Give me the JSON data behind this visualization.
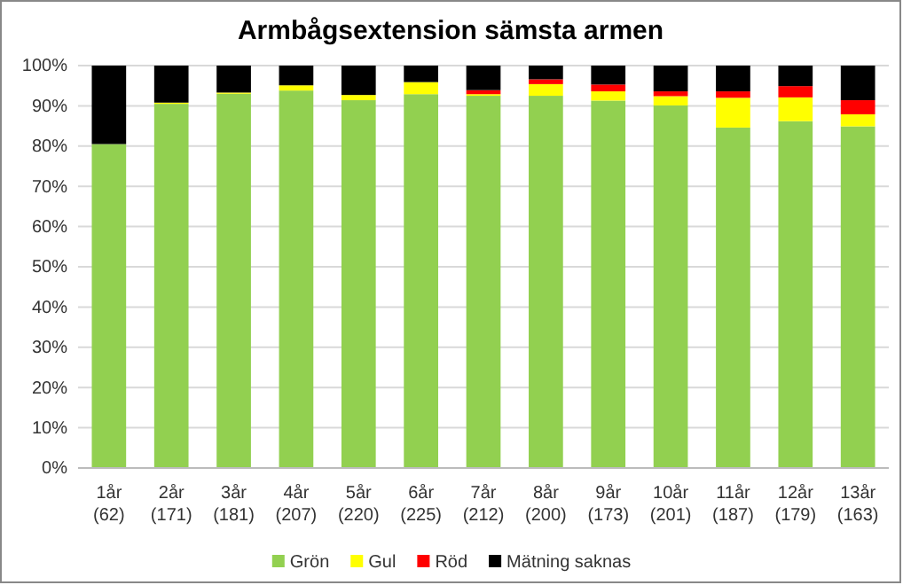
{
  "chart_data": {
    "type": "bar",
    "title": "Armbågsextension sämsta armen",
    "stacked": true,
    "categories": [
      "1år (62)",
      "2år (171)",
      "3år (181)",
      "4år (207)",
      "5år (220)",
      "6år (225)",
      "7år (212)",
      "8år (200)",
      "9år (173)",
      "10år (201)",
      "11år (187)",
      "12år (179)",
      "13år (163)"
    ],
    "series": [
      {
        "name": "Grön",
        "color": "#92d050",
        "values": [
          80.5,
          90.5,
          93,
          93.8,
          91.4,
          92.9,
          92.5,
          92.5,
          91.3,
          90.1,
          84.6,
          86.2,
          84.9
        ]
      },
      {
        "name": "Gul",
        "color": "#ffff00",
        "values": [
          0,
          0.3,
          0.3,
          1.3,
          1.3,
          3,
          0.4,
          2.9,
          2.3,
          2.3,
          7.4,
          5.9,
          3
        ]
      },
      {
        "name": "Röd",
        "color": "#ff0000",
        "values": [
          0,
          0,
          0,
          0,
          0,
          0,
          1,
          1.2,
          1.7,
          1.2,
          1.6,
          2.8,
          3.5
        ]
      },
      {
        "name": "Mätning saknas",
        "color": "#000000",
        "values": [
          19.5,
          9.2,
          6.7,
          4.9,
          7.3,
          4.1,
          6.1,
          3.4,
          4.7,
          6.4,
          6.4,
          5.1,
          8.6
        ]
      }
    ],
    "ylim": [
      0,
      100
    ],
    "yticks": [
      {
        "value": 0,
        "label": "0%"
      },
      {
        "value": 10,
        "label": "10%"
      },
      {
        "value": 20,
        "label": "20%"
      },
      {
        "value": 30,
        "label": "30%"
      },
      {
        "value": 40,
        "label": "40%"
      },
      {
        "value": 50,
        "label": "50%"
      },
      {
        "value": 60,
        "label": "60%"
      },
      {
        "value": 70,
        "label": "70%"
      },
      {
        "value": 80,
        "label": "80%"
      },
      {
        "value": 90,
        "label": "90%"
      },
      {
        "value": 100,
        "label": "100%"
      }
    ],
    "grid": "y",
    "legend": "bottom"
  }
}
